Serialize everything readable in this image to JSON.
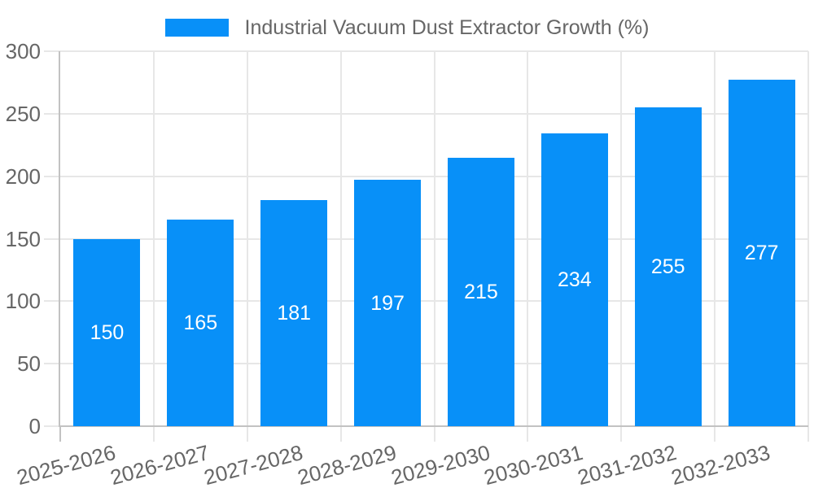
{
  "legend": {
    "label": "Industrial Vacuum Dust Extractor Growth (%)"
  },
  "colors": {
    "bar": "#0890F8",
    "grid": "#e7e7e7",
    "axis_line": "#c2c2c2",
    "tick_text": "#666666",
    "data_label": "#ffffff",
    "background": "#ffffff"
  },
  "chart_data": {
    "type": "bar",
    "title": "Industrial Vacuum Dust Extractor Growth (%)",
    "categories": [
      "2025-2026",
      "2026-2027",
      "2027-2028",
      "2028-2029",
      "2029-2030",
      "2030-2031",
      "2031-2032",
      "2032-2033"
    ],
    "series": [
      {
        "name": "Industrial Vacuum Dust Extractor Growth (%)",
        "values": [
          150,
          165,
          181,
          197,
          215,
          234,
          255,
          277
        ]
      }
    ],
    "data_labels": [
      "150",
      "165",
      "181",
      "197",
      "215",
      "234",
      "255",
      "277"
    ],
    "xlabel": "",
    "ylabel": "",
    "ylim": [
      0,
      300
    ],
    "ytick_step": 50,
    "ytick_labels": [
      "0",
      "50",
      "100",
      "150",
      "200",
      "250",
      "300"
    ],
    "grid": true,
    "legend_position": "top",
    "x_label_rotation_deg": -15
  }
}
